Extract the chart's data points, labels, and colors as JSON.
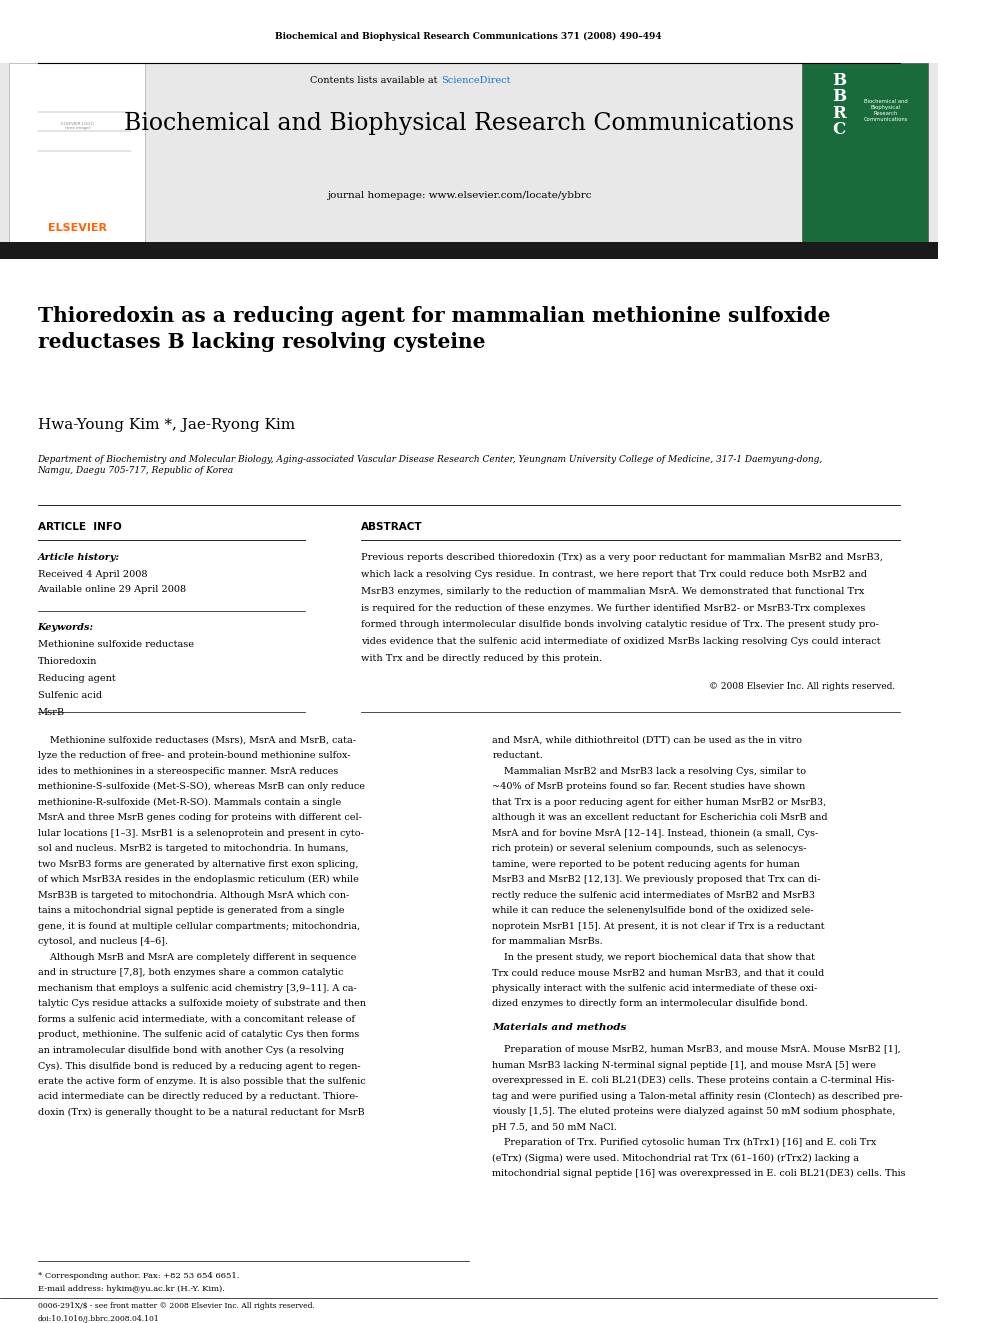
{
  "page_width": 9.92,
  "page_height": 13.23,
  "bg_color": "#ffffff",
  "header_journal_text": "Biochemical and Biophysical Research Communications 371 (2008) 490–494",
  "banner_bg": "#e8e8e8",
  "banner_sciencedirect_color": "#1a73c9",
  "journal_title": "Biochemical and Biophysical Research Communications",
  "journal_homepage": "journal homepage: www.elsevier.com/locate/ybbrc",
  "black_bar_color": "#1a1a1a",
  "article_title": "Thioredoxin as a reducing agent for mammalian methionine sulfoxide\nreductases B lacking resolving cysteine",
  "authors": "Hwa-Young Kim *, Jae-Ryong Kim",
  "affiliation": "Department of Biochemistry and Molecular Biology, Aging-associated Vascular Disease Research Center, Yeungnam University College of Medicine, 317-1 Daemyung-dong,\nNamgu, Daegu 705-717, Republic of Korea",
  "article_info_header": "ARTICLE  INFO",
  "abstract_header": "ABSTRACT",
  "article_history_label": "Article history:",
  "received_text": "Received 4 April 2008",
  "available_text": "Available online 29 April 2008",
  "keywords_label": "Keywords:",
  "keywords": [
    "Methionine sulfoxide reductase",
    "Thioredoxin",
    "Reducing agent",
    "Sulfenic acid",
    "MsrB"
  ],
  "copyright_text": "© 2008 Elsevier Inc. All rights reserved.",
  "abstract_lines": [
    "Previous reports described thioredoxin (Trx) as a very poor reductant for mammalian MsrB2 and MsrB3,",
    "which lack a resolving Cys residue. In contrast, we here report that Trx could reduce both MsrB2 and",
    "MsrB3 enzymes, similarly to the reduction of mammalian MsrA. We demonstrated that functional Trx",
    "is required for the reduction of these enzymes. We further identified MsrB2- or MsrB3-Trx complexes",
    "formed through intermolecular disulfide bonds involving catalytic residue of Trx. The present study pro-",
    "vides evidence that the sulfenic acid intermediate of oxidized MsrBs lacking resolving Cys could interact",
    "with Trx and be directly reduced by this protein."
  ],
  "body_col1": [
    "    Methionine sulfoxide reductases (Msrs), MsrA and MsrB, cata-",
    "lyze the reduction of free- and protein-bound methionine sulfox-",
    "ides to methionines in a stereospecific manner. MsrA reduces",
    "methionine-S-sulfoxide (Met-S-SO), whereas MsrB can only reduce",
    "methionine-R-sulfoxide (Met-R-SO). Mammals contain a single",
    "MsrA and three MsrB genes coding for proteins with different cel-",
    "lular locations [1–3]. MsrB1 is a selenoprotein and present in cyto-",
    "sol and nucleus. MsrB2 is targeted to mitochondria. In humans,",
    "two MsrB3 forms are generated by alternative first exon splicing,",
    "of which MsrB3A resides in the endoplasmic reticulum (ER) while",
    "MsrB3B is targeted to mitochondria. Although MsrA which con-",
    "tains a mitochondrial signal peptide is generated from a single",
    "gene, it is found at multiple cellular compartments; mitochondria,",
    "cytosol, and nucleus [4–6].",
    "    Although MsrB and MsrA are completely different in sequence",
    "and in structure [7,8], both enzymes share a common catalytic",
    "mechanism that employs a sulfenic acid chemistry [3,9–11]. A ca-",
    "talytic Cys residue attacks a sulfoxide moiety of substrate and then",
    "forms a sulfenic acid intermediate, with a concomitant release of",
    "product, methionine. The sulfenic acid of catalytic Cys then forms",
    "an intramolecular disulfide bond with another Cys (a resolving",
    "Cys). This disulfide bond is reduced by a reducing agent to regen-",
    "erate the active form of enzyme. It is also possible that the sulfenic",
    "acid intermediate can be directly reduced by a reductant. Thiore-",
    "doxin (Trx) is generally thought to be a natural reductant for MsrB"
  ],
  "body_col2": [
    "and MsrA, while dithiothreitol (DTT) can be used as the in vitro",
    "reductant.",
    "    Mammalian MsrB2 and MsrB3 lack a resolving Cys, similar to",
    "~40% of MsrB proteins found so far. Recent studies have shown",
    "that Trx is a poor reducing agent for either human MsrB2 or MsrB3,",
    "although it was an excellent reductant for Escherichia coli MsrB and",
    "MsrA and for bovine MsrA [12–14]. Instead, thionein (a small, Cys-",
    "rich protein) or several selenium compounds, such as selenocys-",
    "tamine, were reported to be potent reducing agents for human",
    "MsrB3 and MsrB2 [12,13]. We previously proposed that Trx can di-",
    "rectly reduce the sulfenic acid intermediates of MsrB2 and MsrB3",
    "while it can reduce the selenenylsulfide bond of the oxidized sele-",
    "noprotein MsrB1 [15]. At present, it is not clear if Trx is a reductant",
    "for mammalian MsrBs.",
    "    In the present study, we report biochemical data that show that",
    "Trx could reduce mouse MsrB2 and human MsrB3, and that it could",
    "physically interact with the sulfenic acid intermediate of these oxi-",
    "dized enzymes to directly form an intermolecular disulfide bond."
  ],
  "materials_methods_header": "Materials and methods",
  "mat_lines": [
    "    Preparation of mouse MsrB2, human MsrB3, and mouse MsrA. Mouse MsrB2 [1],",
    "human MsrB3 lacking N-terminal signal peptide [1], and mouse MsrA [5] were",
    "overexpressed in E. coli BL21(DE3) cells. These proteins contain a C-terminal His-",
    "tag and were purified using a Talon-metal affinity resin (Clontech) as described pre-",
    "viously [1,5]. The eluted proteins were dialyzed against 50 mM sodium phosphate,",
    "pH 7.5, and 50 mM NaCl.",
    "    Preparation of Trx. Purified cytosolic human Trx (hTrx1) [16] and E. coli Trx",
    "(eTrx) (Sigma) were used. Mitochondrial rat Trx (61–160) (rTrx2) lacking a",
    "mitochondrial signal peptide [16] was overexpressed in E. coli BL21(DE3) cells. This"
  ],
  "footer_text1": "* Corresponding author. Fax: +82 53 654 6651.",
  "footer_text2": "E-mail address: hykim@yu.ac.kr (H.-Y. Kim).",
  "footer_bar_line1": "0006-291X/$ - see front matter © 2008 Elsevier Inc. All rights reserved.",
  "footer_bar_line2": "doi:10.1016/j.bbrc.2008.04.101",
  "elsevier_color": "#FF6600",
  "bbrc_green": "#1a6b3c"
}
